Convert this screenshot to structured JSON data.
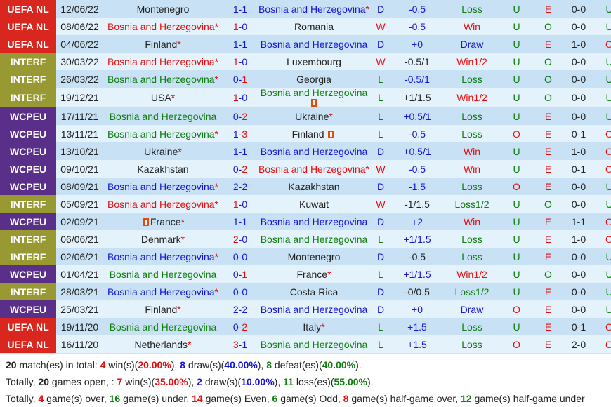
{
  "colors": {
    "uefa_nl": "#d9261f",
    "interf": "#999933",
    "wcpeu": "#5a2f8a",
    "row_dark": "#c8e1f4",
    "row_light": "#e4f2fb",
    "red": "#e60e0e",
    "blue": "#1515d8",
    "green": "#0d7d0d"
  },
  "matches": [
    {
      "comp": "UEFA NL",
      "date": "12/06/22",
      "home": "Montenegro",
      "home_star": "",
      "home_color": "black",
      "s1": "1",
      "s1c": "blue",
      "s2": "1",
      "s2c": "blue",
      "away": "Bosnia and Herzegovina",
      "away_star": "*",
      "away_color": "blue",
      "result": "D",
      "hcp": "-0.5",
      "hcpc": "blue",
      "bet": "Loss",
      "betc": "green",
      "ou": "U",
      "ouc": "green",
      "oe": "E",
      "oec": "red",
      "ht": "0-0",
      "htou": "U",
      "htouc": "green"
    },
    {
      "comp": "UEFA NL",
      "date": "08/06/22",
      "home": "Bosnia and Herzegovina",
      "home_star": "*",
      "home_color": "red",
      "s1": "1",
      "s1c": "red",
      "s2": "0",
      "s2c": "blue",
      "away": "Romania",
      "away_star": "",
      "away_color": "black",
      "result": "W",
      "hcp": "-0.5",
      "hcpc": "blue",
      "bet": "Win",
      "betc": "red",
      "ou": "U",
      "ouc": "green",
      "oe": "O",
      "oec": "green",
      "ht": "0-0",
      "htou": "U",
      "htouc": "green"
    },
    {
      "comp": "UEFA NL",
      "date": "04/06/22",
      "home": "Finland",
      "home_star": "*",
      "home_color": "black",
      "s1": "1",
      "s1c": "blue",
      "s2": "1",
      "s2c": "blue",
      "away": "Bosnia and Herzegovina",
      "away_star": "",
      "away_color": "blue",
      "result": "D",
      "hcp": "+0",
      "hcpc": "blue",
      "bet": "Draw",
      "betc": "blue",
      "ou": "U",
      "ouc": "green",
      "oe": "E",
      "oec": "red",
      "ht": "1-0",
      "htou": "O",
      "htouc": "red"
    },
    {
      "comp": "INTERF",
      "date": "30/03/22",
      "home": "Bosnia and Herzegovina",
      "home_star": "*",
      "home_color": "red",
      "s1": "1",
      "s1c": "red",
      "s2": "0",
      "s2c": "blue",
      "away": "Luxembourg",
      "away_star": "",
      "away_color": "black",
      "result": "W",
      "hcp": "-0.5/1",
      "hcpc": "black",
      "bet": "Win1/2",
      "betc": "red",
      "ou": "U",
      "ouc": "green",
      "oe": "O",
      "oec": "green",
      "ht": "0-0",
      "htou": "U",
      "htouc": "green"
    },
    {
      "comp": "INTERF",
      "date": "26/03/22",
      "home": "Bosnia and Herzegovina",
      "home_star": "*",
      "home_color": "green",
      "s1": "0",
      "s1c": "blue",
      "s2": "1",
      "s2c": "red",
      "away": "Georgia",
      "away_star": "",
      "away_color": "black",
      "result": "L",
      "hcp": "-0.5/1",
      "hcpc": "blue",
      "bet": "Loss",
      "betc": "green",
      "ou": "U",
      "ouc": "green",
      "oe": "O",
      "oec": "green",
      "ht": "0-0",
      "htou": "U",
      "htouc": "green"
    },
    {
      "comp": "INTERF",
      "date": "19/12/21",
      "home": "USA",
      "home_star": "*",
      "home_color": "black",
      "s1": "1",
      "s1c": "red",
      "s2": "0",
      "s2c": "blue",
      "away": "Bosnia and Herzegovina",
      "away_star": "",
      "away_color": "green",
      "away_flag": "red-card",
      "result": "L",
      "hcp": "+1/1.5",
      "hcpc": "black",
      "bet": "Win1/2",
      "betc": "red",
      "ou": "U",
      "ouc": "green",
      "oe": "O",
      "oec": "green",
      "ht": "0-0",
      "htou": "U",
      "htouc": "green"
    },
    {
      "comp": "WCPEU",
      "date": "17/11/21",
      "home": "Bosnia and Herzegovina",
      "home_star": "",
      "home_color": "green",
      "s1": "0",
      "s1c": "blue",
      "s2": "2",
      "s2c": "red",
      "away": "Ukraine",
      "away_star": "*",
      "away_color": "black",
      "result": "L",
      "hcp": "+0.5/1",
      "hcpc": "blue",
      "bet": "Loss",
      "betc": "green",
      "ou": "U",
      "ouc": "green",
      "oe": "E",
      "oec": "red",
      "ht": "0-0",
      "htou": "U",
      "htouc": "green"
    },
    {
      "comp": "WCPEU",
      "date": "13/11/21",
      "home": "Bosnia and Herzegovina",
      "home_star": "*",
      "home_color": "green",
      "s1": "1",
      "s1c": "blue",
      "s2": "3",
      "s2c": "red",
      "away": "Finland",
      "away_star": "",
      "away_color": "black",
      "away_flag_inline": "red-card",
      "result": "L",
      "hcp": "-0.5",
      "hcpc": "blue",
      "bet": "Loss",
      "betc": "green",
      "ou": "O",
      "ouc": "red",
      "oe": "E",
      "oec": "red",
      "ht": "0-1",
      "htou": "O",
      "htouc": "red"
    },
    {
      "comp": "WCPEU",
      "date": "13/10/21",
      "home": "Ukraine",
      "home_star": "*",
      "home_color": "black",
      "s1": "1",
      "s1c": "blue",
      "s2": "1",
      "s2c": "blue",
      "away": "Bosnia and Herzegovina",
      "away_star": "",
      "away_color": "blue",
      "result": "D",
      "hcp": "+0.5/1",
      "hcpc": "blue",
      "bet": "Win",
      "betc": "red",
      "ou": "U",
      "ouc": "green",
      "oe": "E",
      "oec": "red",
      "ht": "1-0",
      "htou": "O",
      "htouc": "red"
    },
    {
      "comp": "WCPEU",
      "date": "09/10/21",
      "home": "Kazakhstan",
      "home_star": "",
      "home_color": "black",
      "s1": "0",
      "s1c": "blue",
      "s2": "2",
      "s2c": "red",
      "away": "Bosnia and Herzegovina",
      "away_star": "*",
      "away_color": "red",
      "result": "W",
      "hcp": "-0.5",
      "hcpc": "blue",
      "bet": "Win",
      "betc": "red",
      "ou": "U",
      "ouc": "green",
      "oe": "E",
      "oec": "red",
      "ht": "0-1",
      "htou": "O",
      "htouc": "red"
    },
    {
      "comp": "WCPEU",
      "date": "08/09/21",
      "home": "Bosnia and Herzegovina",
      "home_star": "*",
      "home_color": "blue",
      "s1": "2",
      "s1c": "blue",
      "s2": "2",
      "s2c": "blue",
      "away": "Kazakhstan",
      "away_star": "",
      "away_color": "black",
      "result": "D",
      "hcp": "-1.5",
      "hcpc": "blue",
      "bet": "Loss",
      "betc": "green",
      "ou": "O",
      "ouc": "red",
      "oe": "E",
      "oec": "red",
      "ht": "0-0",
      "htou": "U",
      "htouc": "green"
    },
    {
      "comp": "INTERF",
      "date": "05/09/21",
      "home": "Bosnia and Herzegovina",
      "home_star": "*",
      "home_color": "red",
      "s1": "1",
      "s1c": "red",
      "s2": "0",
      "s2c": "blue",
      "away": "Kuwait",
      "away_star": "",
      "away_color": "black",
      "result": "W",
      "hcp": "-1/1.5",
      "hcpc": "black",
      "bet": "Loss1/2",
      "betc": "green",
      "ou": "U",
      "ouc": "green",
      "oe": "O",
      "oec": "green",
      "ht": "0-0",
      "htou": "U",
      "htouc": "green"
    },
    {
      "comp": "WCPEU",
      "date": "02/09/21",
      "home": "France",
      "home_star": "*",
      "home_color": "black",
      "home_flag": "red-card",
      "s1": "1",
      "s1c": "blue",
      "s2": "1",
      "s2c": "blue",
      "away": "Bosnia and Herzegovina",
      "away_star": "",
      "away_color": "blue",
      "result": "D",
      "hcp": "+2",
      "hcpc": "blue",
      "bet": "Win",
      "betc": "red",
      "ou": "U",
      "ouc": "green",
      "oe": "E",
      "oec": "red",
      "ht": "1-1",
      "htou": "O",
      "htouc": "red"
    },
    {
      "comp": "INTERF",
      "date": "06/06/21",
      "home": "Denmark",
      "home_star": "*",
      "home_color": "black",
      "s1": "2",
      "s1c": "red",
      "s2": "0",
      "s2c": "blue",
      "away": "Bosnia and Herzegovina",
      "away_star": "",
      "away_color": "green",
      "result": "L",
      "hcp": "+1/1.5",
      "hcpc": "blue",
      "bet": "Loss",
      "betc": "green",
      "ou": "U",
      "ouc": "green",
      "oe": "E",
      "oec": "red",
      "ht": "1-0",
      "htou": "O",
      "htouc": "red"
    },
    {
      "comp": "INTERF",
      "date": "02/06/21",
      "home": "Bosnia and Herzegovina",
      "home_star": "*",
      "home_color": "blue",
      "s1": "0",
      "s1c": "blue",
      "s2": "0",
      "s2c": "blue",
      "away": "Montenegro",
      "away_star": "",
      "away_color": "black",
      "result": "D",
      "hcp": "-0.5",
      "hcpc": "black",
      "bet": "Loss",
      "betc": "green",
      "ou": "U",
      "ouc": "green",
      "oe": "E",
      "oec": "red",
      "ht": "0-0",
      "htou": "U",
      "htouc": "green"
    },
    {
      "comp": "WCPEU",
      "date": "01/04/21",
      "home": "Bosnia and Herzegovina",
      "home_star": "",
      "home_color": "green",
      "s1": "0",
      "s1c": "blue",
      "s2": "1",
      "s2c": "red",
      "away": "France",
      "away_star": "*",
      "away_color": "black",
      "result": "L",
      "hcp": "+1/1.5",
      "hcpc": "blue",
      "bet": "Win1/2",
      "betc": "red",
      "ou": "U",
      "ouc": "green",
      "oe": "O",
      "oec": "green",
      "ht": "0-0",
      "htou": "U",
      "htouc": "green"
    },
    {
      "comp": "INTERF",
      "date": "28/03/21",
      "home": "Bosnia and Herzegovina",
      "home_star": "*",
      "home_color": "blue",
      "s1": "0",
      "s1c": "blue",
      "s2": "0",
      "s2c": "blue",
      "away": "Costa Rica",
      "away_star": "",
      "away_color": "black",
      "result": "D",
      "hcp": "-0/0.5",
      "hcpc": "black",
      "bet": "Loss1/2",
      "betc": "green",
      "ou": "U",
      "ouc": "green",
      "oe": "E",
      "oec": "red",
      "ht": "0-0",
      "htou": "U",
      "htouc": "green"
    },
    {
      "comp": "WCPEU",
      "date": "25/03/21",
      "home": "Finland",
      "home_star": "*",
      "home_color": "black",
      "s1": "2",
      "s1c": "blue",
      "s2": "2",
      "s2c": "blue",
      "away": "Bosnia and Herzegovina",
      "away_star": "",
      "away_color": "blue",
      "result": "D",
      "hcp": "+0",
      "hcpc": "blue",
      "bet": "Draw",
      "betc": "blue",
      "ou": "O",
      "ouc": "red",
      "oe": "E",
      "oec": "red",
      "ht": "0-0",
      "htou": "U",
      "htouc": "green"
    },
    {
      "comp": "UEFA NL",
      "date": "19/11/20",
      "home": "Bosnia and Herzegovina",
      "home_star": "",
      "home_color": "green",
      "s1": "0",
      "s1c": "blue",
      "s2": "2",
      "s2c": "red",
      "away": "Italy",
      "away_star": "*",
      "away_color": "black",
      "result": "L",
      "hcp": "+1.5",
      "hcpc": "blue",
      "bet": "Loss",
      "betc": "green",
      "ou": "U",
      "ouc": "green",
      "oe": "E",
      "oec": "red",
      "ht": "0-1",
      "htou": "O",
      "htouc": "red"
    },
    {
      "comp": "UEFA NL",
      "date": "16/11/20",
      "home": "Netherlands",
      "home_star": "*",
      "home_color": "black",
      "s1": "3",
      "s1c": "red",
      "s2": "1",
      "s2c": "blue",
      "away": "Bosnia and Herzegovina",
      "away_star": "",
      "away_color": "green",
      "result": "L",
      "hcp": "+1.5",
      "hcpc": "blue",
      "bet": "Loss",
      "betc": "green",
      "ou": "O",
      "ouc": "red",
      "oe": "E",
      "oec": "red",
      "ht": "2-0",
      "htou": "O",
      "htouc": "red"
    }
  ],
  "summary": {
    "line1": {
      "total": "20",
      "t1": " match(es) in total: ",
      "wins": "4",
      "t2": " win(s)(",
      "win_pct": "20.00%",
      "t3": "), ",
      "draws": "8",
      "t4": " draw(s)(",
      "draw_pct": "40.00%",
      "t5": "), ",
      "defeats": "8",
      "t6": " defeat(es)(",
      "defeat_pct": "40.00%",
      "t7": ")."
    },
    "line2": {
      "t0": "Totally, ",
      "total": "20",
      "t1": " games open, : ",
      "wins": "7",
      "t2": " win(s)(",
      "win_pct": "35.00%",
      "t3": "), ",
      "draws": "2",
      "t4": " draw(s)(",
      "draw_pct": "10.00%",
      "t5": "), ",
      "losses": "11",
      "t6": " loss(es)(",
      "loss_pct": "55.00%",
      "t7": ")."
    },
    "line3": {
      "t0": "Totally, ",
      "over": "4",
      "t1": " game(s) over, ",
      "under": "16",
      "t2": " game(s) under, ",
      "even": "14",
      "t3": " game(s) Even, ",
      "odd": "6",
      "t4": " game(s) Odd, ",
      "half_over": "8",
      "t5": " game(s) half-game over, ",
      "half_under": "12",
      "t6": " game(s) half-game under"
    }
  }
}
